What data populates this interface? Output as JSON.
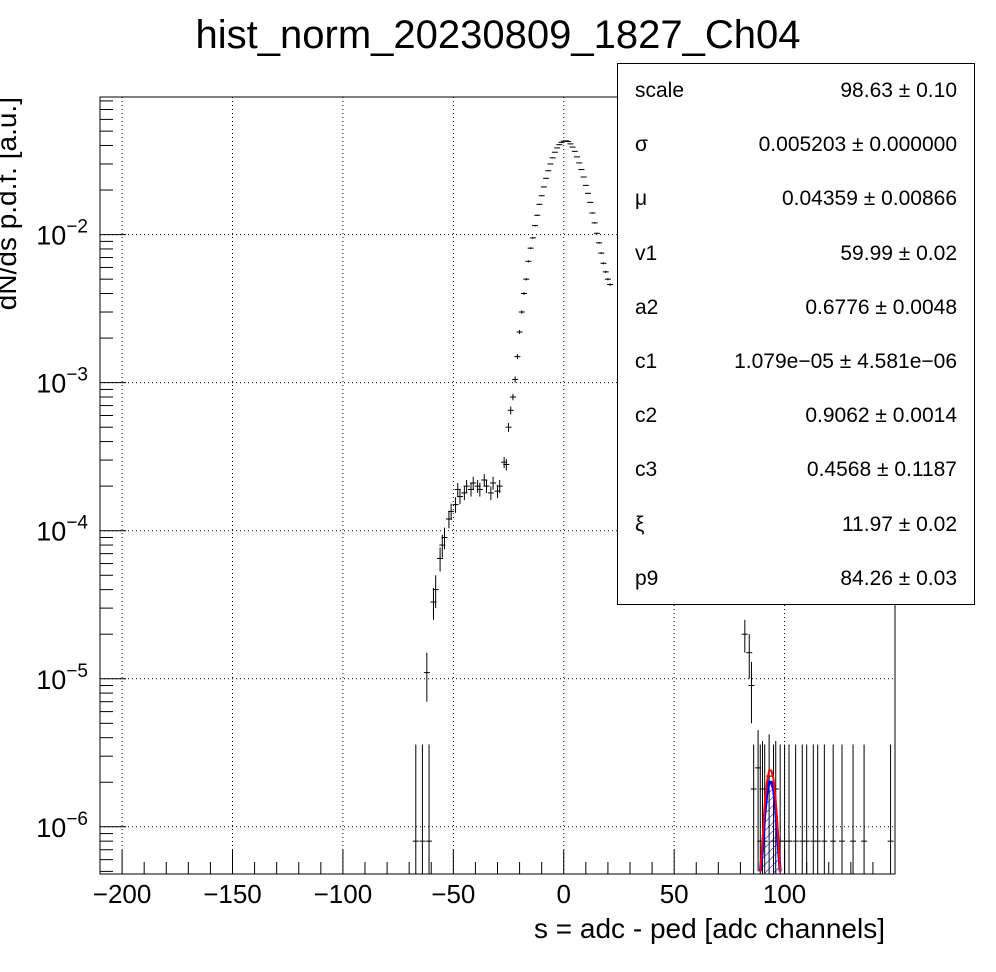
{
  "chart_data": {
    "type": "scatter",
    "title": "hist_norm_20230809_1827_Ch04",
    "xlabel": "s = adc - ped [adc channels]",
    "ylabel": "dN/ds p.d.f. [a.u.]",
    "xlim": [
      -210,
      150
    ],
    "ylim": [
      4.8e-07,
      0.085
    ],
    "yscale": "log",
    "grid": true,
    "x_ticks": [
      -200,
      -150,
      -100,
      -50,
      0,
      50,
      100
    ],
    "x_tick_labels": [
      "−200",
      "−150",
      "−100",
      "−50",
      "0",
      "50",
      "100"
    ],
    "y_ticks": [
      1e-06,
      1e-05,
      0.0001,
      0.001,
      0.01
    ],
    "y_tick_labels": [
      {
        "base": "10",
        "exp": "−6"
      },
      {
        "base": "10",
        "exp": "−5"
      },
      {
        "base": "10",
        "exp": "−4"
      },
      {
        "base": "10",
        "exp": "−3"
      },
      {
        "base": "10",
        "exp": "−2"
      }
    ],
    "series": [
      {
        "style": "points-with-errors",
        "color": "#000000",
        "points": [
          {
            "x": -67,
            "y": 8e-07,
            "e": 2.8e-06
          },
          {
            "x": -64,
            "y": 8e-07,
            "e": 2.8e-06
          },
          {
            "x": -62,
            "y": 1.1e-05,
            "e": 4e-06
          },
          {
            "x": -61,
            "y": 8e-07,
            "e": 2.8e-06
          },
          {
            "x": -59,
            "y": 3.3e-05,
            "e": 8e-06
          },
          {
            "x": -58,
            "y": 4e-05,
            "e": 1e-05
          },
          {
            "x": -56,
            "y": 6.5e-05,
            "e": 1.2e-05
          },
          {
            "x": -55,
            "y": 8e-05,
            "e": 1.4e-05
          },
          {
            "x": -54,
            "y": 9e-05,
            "e": 1.5e-05
          },
          {
            "x": -52,
            "y": 0.00012,
            "e": 1.6e-05
          },
          {
            "x": -51,
            "y": 0.000135,
            "e": 1.7e-05
          },
          {
            "x": -49,
            "y": 0.00015,
            "e": 1.8e-05
          },
          {
            "x": -48,
            "y": 0.00019,
            "e": 2e-05
          },
          {
            "x": -47,
            "y": 0.00017,
            "e": 1.9e-05
          },
          {
            "x": -45,
            "y": 0.00018,
            "e": 1.9e-05
          },
          {
            "x": -44,
            "y": 0.0002,
            "e": 2e-05
          },
          {
            "x": -42,
            "y": 0.00019,
            "e": 2e-05
          },
          {
            "x": -41,
            "y": 0.00021,
            "e": 2.1e-05
          },
          {
            "x": -39,
            "y": 0.0002,
            "e": 2e-05
          },
          {
            "x": -38,
            "y": 0.00019,
            "e": 2e-05
          },
          {
            "x": -36,
            "y": 0.00022,
            "e": 2.1e-05
          },
          {
            "x": -35,
            "y": 0.0002,
            "e": 2e-05
          },
          {
            "x": -33,
            "y": 0.00018,
            "e": 1.9e-05
          },
          {
            "x": -32,
            "y": 0.00021,
            "e": 2.1e-05
          },
          {
            "x": -30,
            "y": 0.000185,
            "e": 1.9e-05
          },
          {
            "x": -29,
            "y": 0.0002,
            "e": 2e-05
          },
          {
            "x": -27,
            "y": 0.00029,
            "e": 2.5e-05
          },
          {
            "x": -26,
            "y": 0.00028,
            "e": 2.5e-05
          },
          {
            "x": -25,
            "y": 0.0005,
            "e": 3.5e-05
          },
          {
            "x": -24,
            "y": 0.00065,
            "e": 4e-05
          },
          {
            "x": -23,
            "y": 0.0008,
            "e": 4e-05
          },
          {
            "x": -22,
            "y": 0.00105,
            "e": 5e-05
          },
          {
            "x": -21,
            "y": 0.0015,
            "e": 6e-05
          },
          {
            "x": -20,
            "y": 0.0022,
            "e": 7e-05
          },
          {
            "x": -19,
            "y": 0.003,
            "e": 8e-05
          },
          {
            "x": -18,
            "y": 0.004,
            "e": 9e-05
          },
          {
            "x": -17,
            "y": 0.005,
            "e": 0.0001
          },
          {
            "x": -16,
            "y": 0.0066,
            "e": 0.00011
          },
          {
            "x": -15,
            "y": 0.0081,
            "e": 0.00012
          },
          {
            "x": -14,
            "y": 0.0095,
            "e": 0.00013
          },
          {
            "x": -13,
            "y": 0.0115,
            "e": 0.00014
          },
          {
            "x": -12,
            "y": 0.0135,
            "e": 0.00015
          },
          {
            "x": -11,
            "y": 0.016,
            "e": 0.00016
          },
          {
            "x": -10,
            "y": 0.0183,
            "e": 0.00017
          },
          {
            "x": -9,
            "y": 0.021,
            "e": 0.00018
          },
          {
            "x": -8,
            "y": 0.024,
            "e": 0.00019
          },
          {
            "x": -7,
            "y": 0.027,
            "e": 0.0002
          },
          {
            "x": -6,
            "y": 0.03,
            "e": 0.00021
          },
          {
            "x": -5,
            "y": 0.033,
            "e": 0.00022
          },
          {
            "x": -4,
            "y": 0.036,
            "e": 0.00023
          },
          {
            "x": -3,
            "y": 0.0385,
            "e": 0.00024
          },
          {
            "x": -2,
            "y": 0.0405,
            "e": 0.00024
          },
          {
            "x": -1,
            "y": 0.042,
            "e": 0.00025
          },
          {
            "x": 0,
            "y": 0.0428,
            "e": 0.00025
          },
          {
            "x": 1,
            "y": 0.043,
            "e": 0.00025
          },
          {
            "x": 2,
            "y": 0.0425,
            "e": 0.00025
          },
          {
            "x": 3,
            "y": 0.041,
            "e": 0.00024
          },
          {
            "x": 4,
            "y": 0.039,
            "e": 0.00024
          },
          {
            "x": 5,
            "y": 0.0365,
            "e": 0.00023
          },
          {
            "x": 6,
            "y": 0.0335,
            "e": 0.00022
          },
          {
            "x": 7,
            "y": 0.0305,
            "e": 0.00021
          },
          {
            "x": 8,
            "y": 0.0275,
            "e": 0.0002
          },
          {
            "x": 9,
            "y": 0.0245,
            "e": 0.00019
          },
          {
            "x": 10,
            "y": 0.0215,
            "e": 0.00018
          },
          {
            "x": 11,
            "y": 0.019,
            "e": 0.00017
          },
          {
            "x": 12,
            "y": 0.0165,
            "e": 0.00016
          },
          {
            "x": 13,
            "y": 0.014,
            "e": 0.00015
          },
          {
            "x": 14,
            "y": 0.012,
            "e": 0.00014
          },
          {
            "x": 15,
            "y": 0.0102,
            "e": 0.00013
          },
          {
            "x": 16,
            "y": 0.0088,
            "e": 0.00012
          },
          {
            "x": 17,
            "y": 0.0075,
            "e": 0.00011
          },
          {
            "x": 18,
            "y": 0.0064,
            "e": 0.0001
          },
          {
            "x": 19,
            "y": 0.0056,
            "e": 0.0001
          },
          {
            "x": 20,
            "y": 0.005,
            "e": 9e-05
          },
          {
            "x": 21,
            "y": 0.0046,
            "e": 9e-05
          },
          {
            "x": 82,
            "y": 2e-05,
            "e": 5e-06
          },
          {
            "x": 84,
            "y": 1.5e-05,
            "e": 5e-06
          },
          {
            "x": 85,
            "y": 9e-06,
            "e": 4e-06
          },
          {
            "x": 86,
            "y": 1.8e-06,
            "e": 1.8e-06
          },
          {
            "x": 88,
            "y": 2.5e-06,
            "e": 2e-06
          },
          {
            "x": 89,
            "y": 8e-07,
            "e": 2.8e-06
          },
          {
            "x": 90,
            "y": 1.8e-06,
            "e": 2e-06
          },
          {
            "x": 91,
            "y": 8e-07,
            "e": 2.8e-06
          },
          {
            "x": 93,
            "y": 2.2e-06,
            "e": 2e-06
          },
          {
            "x": 95,
            "y": 8e-07,
            "e": 2.8e-06
          },
          {
            "x": 96,
            "y": 1.8e-06,
            "e": 2e-06
          },
          {
            "x": 98,
            "y": 8e-07,
            "e": 2.8e-06
          },
          {
            "x": 100,
            "y": 8e-07,
            "e": 2.8e-06
          },
          {
            "x": 102,
            "y": 8e-07,
            "e": 2.8e-06
          },
          {
            "x": 105,
            "y": 8e-07,
            "e": 2.8e-06
          },
          {
            "x": 108,
            "y": 8e-07,
            "e": 2.8e-06
          },
          {
            "x": 110,
            "y": 8e-07,
            "e": 2.8e-06
          },
          {
            "x": 113,
            "y": 8e-07,
            "e": 2.8e-06
          },
          {
            "x": 115,
            "y": 8e-07,
            "e": 2.8e-06
          },
          {
            "x": 118,
            "y": 8e-07,
            "e": 2.8e-06
          },
          {
            "x": 122,
            "y": 8e-07,
            "e": 2.8e-06
          },
          {
            "x": 126,
            "y": 8e-07,
            "e": 2.8e-06
          },
          {
            "x": 131,
            "y": 8e-07,
            "e": 2.8e-06
          },
          {
            "x": 136,
            "y": 8e-07,
            "e": 2.8e-06
          },
          {
            "x": 148,
            "y": 8e-07,
            "e": 2.8e-06
          }
        ]
      },
      {
        "style": "line",
        "color": "#ff0000",
        "points": [
          [
            89,
            5e-07
          ],
          [
            90,
            8e-07
          ],
          [
            91,
            1.4e-06
          ],
          [
            92,
            2e-06
          ],
          [
            93,
            2.4e-06
          ],
          [
            94,
            2.4e-06
          ],
          [
            95,
            2.1e-06
          ],
          [
            96,
            1.5e-06
          ],
          [
            97,
            9e-07
          ],
          [
            98,
            5e-07
          ]
        ]
      },
      {
        "style": "hatched-area",
        "color": "#0000ff",
        "points": [
          [
            89,
            5e-07
          ],
          [
            90,
            7e-07
          ],
          [
            91,
            1.2e-06
          ],
          [
            92,
            1.7e-06
          ],
          [
            93,
            2e-06
          ],
          [
            94,
            2e-06
          ],
          [
            95,
            1.8e-06
          ],
          [
            96,
            1.3e-06
          ],
          [
            97,
            8e-07
          ],
          [
            98,
            5e-07
          ]
        ]
      }
    ]
  },
  "stats_box": {
    "rows": [
      {
        "name": "scale",
        "value": "98.63 ± 0.10"
      },
      {
        "name": "σ",
        "value": "0.005203 ± 0.000000"
      },
      {
        "name": "μ",
        "value": "0.04359 ± 0.00866"
      },
      {
        "name": "v1",
        "value": "59.99 ± 0.02"
      },
      {
        "name": "a2",
        "value": "0.6776 ± 0.0048"
      },
      {
        "name": "c1",
        "value": "1.079e−05 ± 4.581e−06"
      },
      {
        "name": "c2",
        "value": "0.9062 ± 0.0014"
      },
      {
        "name": "c3",
        "value": "0.4568 ± 0.1187"
      },
      {
        "name": "ξ",
        "value": "11.97 ± 0.02"
      },
      {
        "name": "p9",
        "value": "84.26 ± 0.03"
      }
    ]
  }
}
